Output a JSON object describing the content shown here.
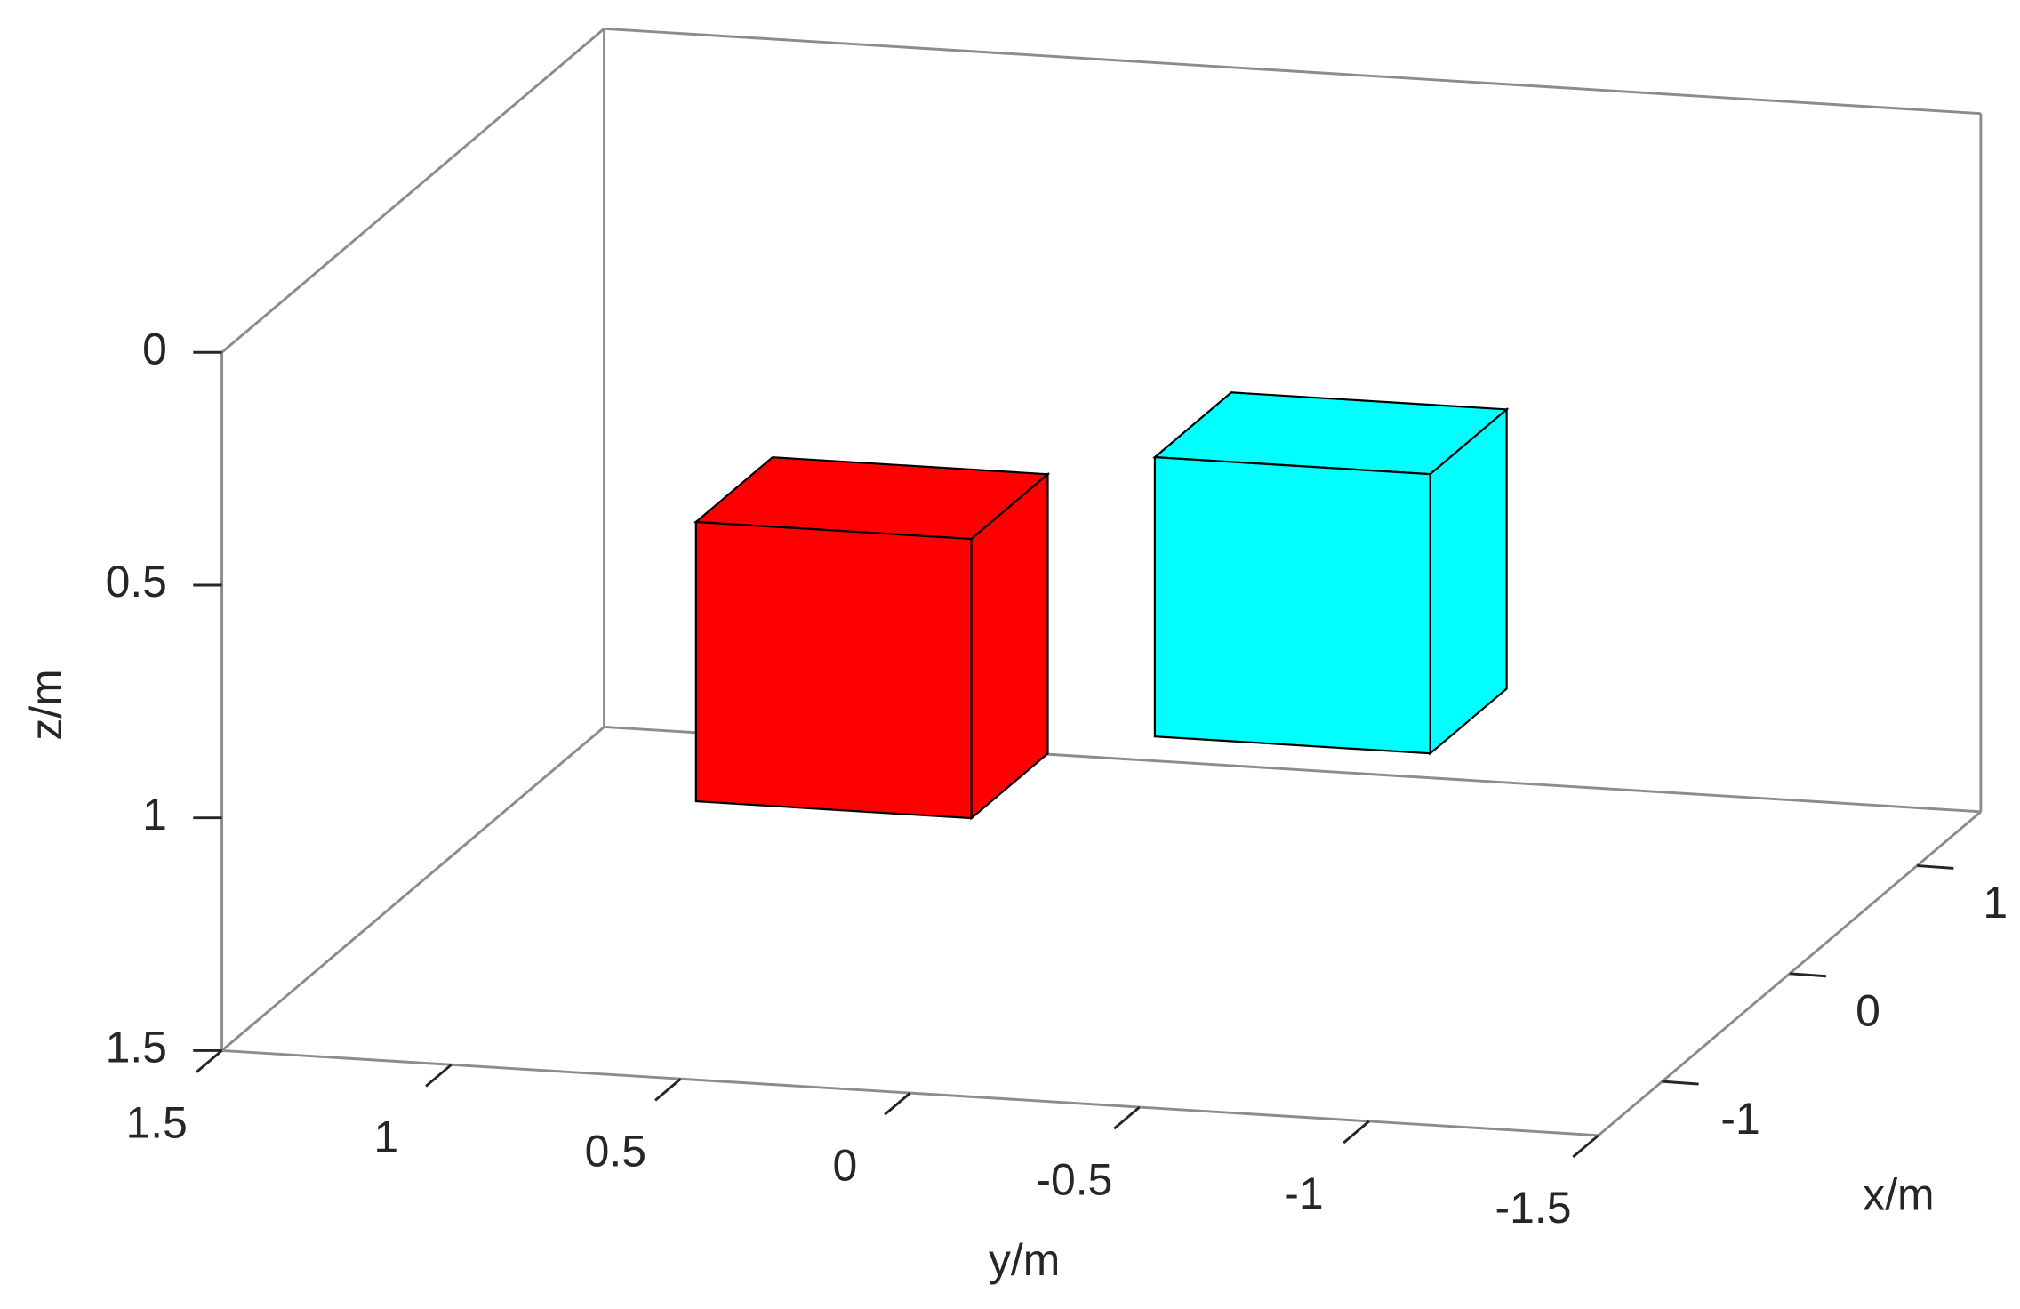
{
  "chart_data": {
    "type": "cubes3d",
    "xlabel": "x/m",
    "ylabel": "y/m",
    "zlabel": "z/m",
    "xlim": [
      -1.5,
      1.5
    ],
    "ylim": [
      -1.5,
      1.5
    ],
    "zlim": [
      0,
      1.5
    ],
    "zdir": "reverse",
    "xticks": [
      -1,
      0,
      1
    ],
    "yticks": [
      -1.5,
      -1,
      -0.5,
      0,
      0.5,
      1,
      1.5
    ],
    "zticks": [
      0,
      0.5,
      1,
      1.5
    ],
    "cubes": [
      {
        "color": "#ff0000",
        "center": [
          0,
          0.5,
          0.9
        ],
        "size": 0.6
      },
      {
        "color": "#00ffff",
        "center": [
          0,
          -0.5,
          0.7
        ],
        "size": 0.6
      }
    ]
  }
}
